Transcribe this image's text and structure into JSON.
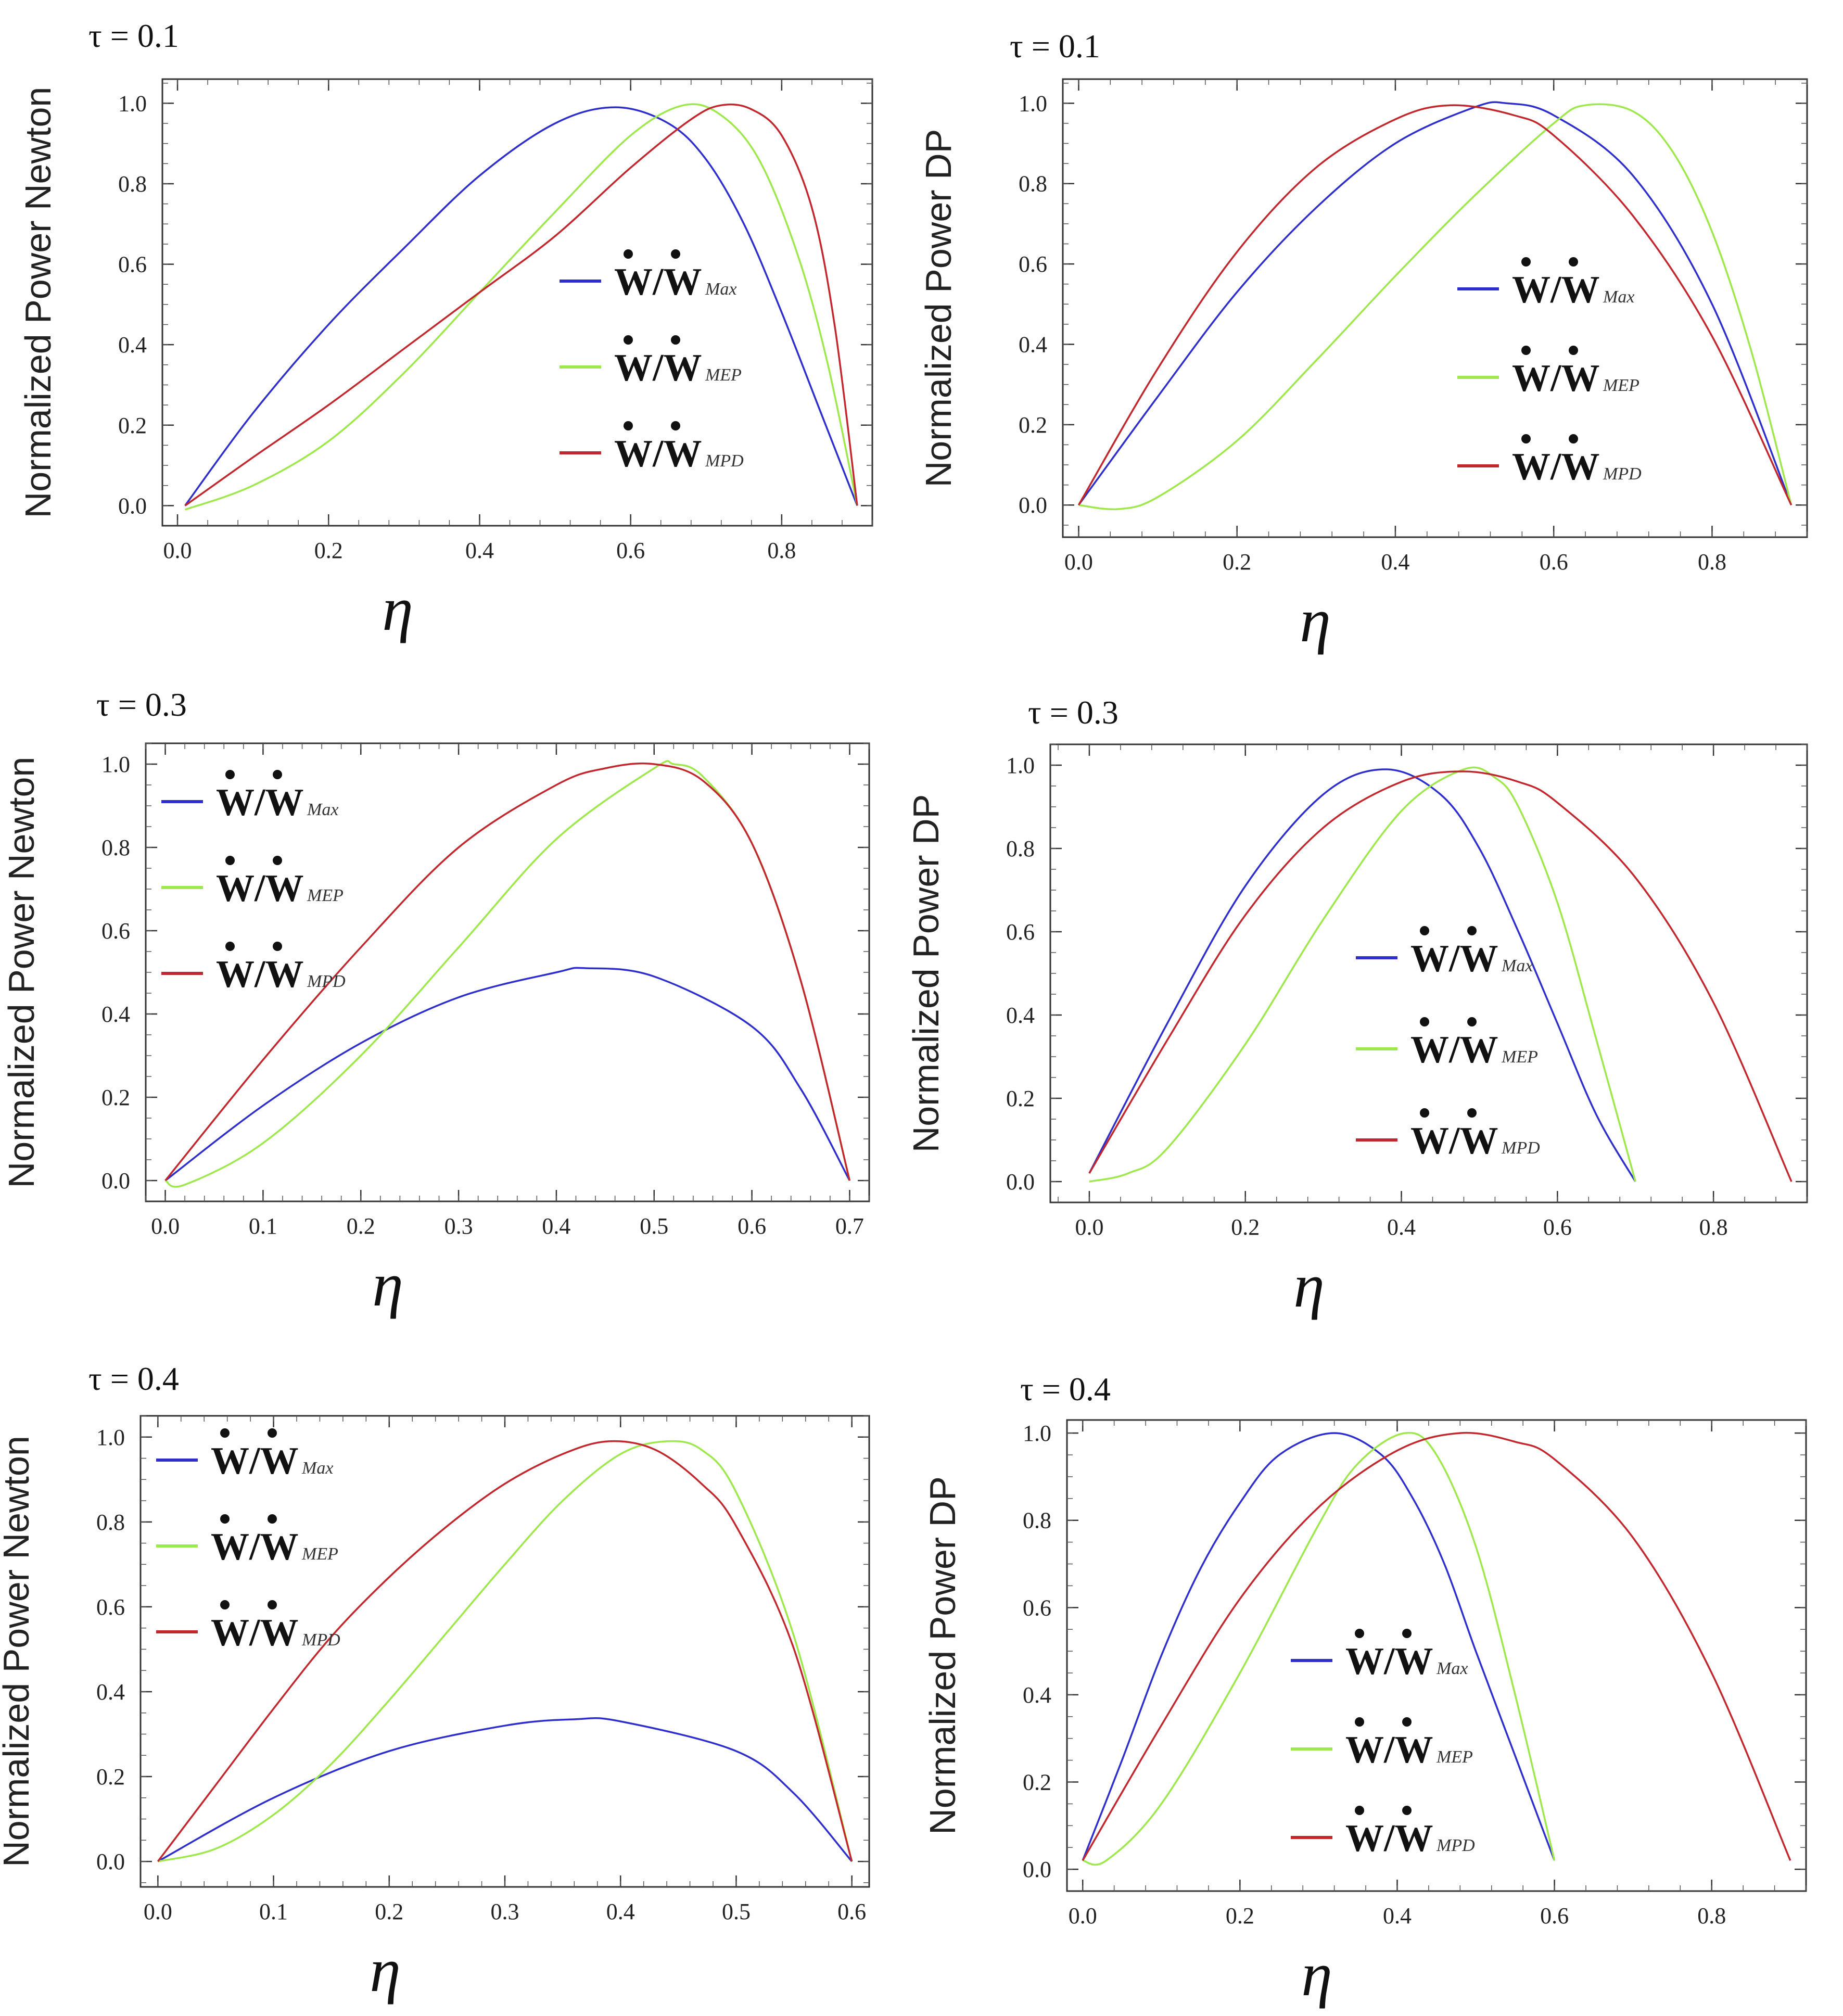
{
  "chart_data": [
    {
      "type": "line",
      "tau": "τ = 0.1",
      "ylabel": "Normalized Power Newton",
      "xlabel": "η",
      "xlim": [
        -0.02,
        0.92
      ],
      "ylim": [
        -0.05,
        1.06
      ],
      "xticks": [
        "0.0",
        "0.2",
        "0.4",
        "0.6",
        "0.8"
      ],
      "yticks": [
        "0.0",
        "0.2",
        "0.4",
        "0.6",
        "0.8",
        "1.0"
      ],
      "legend": {
        "position": "center-right",
        "entry_text": "W/W",
        "subscripts": [
          "Max",
          "MEP",
          "MPD"
        ]
      },
      "series": [
        {
          "name": "Max",
          "color": "#2e2ecc",
          "x": [
            0.01,
            0.1,
            0.2,
            0.3,
            0.4,
            0.5,
            0.58,
            0.65,
            0.7,
            0.75,
            0.8,
            0.85,
            0.9
          ],
          "y": [
            0.0,
            0.23,
            0.45,
            0.64,
            0.82,
            0.95,
            0.99,
            0.95,
            0.86,
            0.7,
            0.48,
            0.24,
            0.0
          ]
        },
        {
          "name": "MEP",
          "color": "#9de84a",
          "x": [
            0.01,
            0.1,
            0.2,
            0.3,
            0.4,
            0.5,
            0.6,
            0.67,
            0.72,
            0.77,
            0.82,
            0.86,
            0.9
          ],
          "y": [
            -0.01,
            0.05,
            0.16,
            0.33,
            0.53,
            0.73,
            0.92,
            0.995,
            0.97,
            0.86,
            0.63,
            0.36,
            0.0
          ]
        },
        {
          "name": "MPD",
          "color": "#c1272d",
          "x": [
            0.01,
            0.1,
            0.2,
            0.3,
            0.4,
            0.5,
            0.6,
            0.68,
            0.72,
            0.76,
            0.8,
            0.84,
            0.87,
            0.9
          ],
          "y": [
            0.0,
            0.12,
            0.25,
            0.39,
            0.53,
            0.67,
            0.84,
            0.96,
            0.995,
            0.985,
            0.92,
            0.74,
            0.45,
            0.0
          ]
        }
      ]
    },
    {
      "type": "line",
      "tau": "τ = 0.1",
      "ylabel": "Normalized Power DP",
      "xlabel": "η",
      "xlim": [
        -0.02,
        0.92
      ],
      "ylim": [
        -0.08,
        1.06
      ],
      "xticks": [
        "0.0",
        "0.2",
        "0.4",
        "0.6",
        "0.8"
      ],
      "yticks": [
        "0.0",
        "0.2",
        "0.4",
        "0.6",
        "0.8",
        "1.0"
      ],
      "legend": {
        "position": "center-right",
        "entry_text": "W/W",
        "subscripts": [
          "Max",
          "MEP",
          "MPD"
        ]
      },
      "series": [
        {
          "name": "Max",
          "color": "#2e2ecc",
          "x": [
            0.0,
            0.1,
            0.2,
            0.3,
            0.4,
            0.5,
            0.54,
            0.6,
            0.7,
            0.8,
            0.9
          ],
          "y": [
            0.0,
            0.27,
            0.53,
            0.74,
            0.9,
            0.99,
            1.0,
            0.97,
            0.82,
            0.5,
            0.0
          ]
        },
        {
          "name": "MEP",
          "color": "#9de84a",
          "x": [
            0.0,
            0.05,
            0.1,
            0.2,
            0.3,
            0.4,
            0.5,
            0.6,
            0.64,
            0.7,
            0.75,
            0.8,
            0.85,
            0.9
          ],
          "y": [
            0.0,
            -0.01,
            0.02,
            0.16,
            0.36,
            0.57,
            0.77,
            0.95,
            0.995,
            0.98,
            0.88,
            0.68,
            0.38,
            0.0
          ]
        },
        {
          "name": "MPD",
          "color": "#c1272d",
          "x": [
            0.0,
            0.1,
            0.2,
            0.3,
            0.4,
            0.47,
            0.55,
            0.6,
            0.7,
            0.8,
            0.9
          ],
          "y": [
            0.0,
            0.34,
            0.63,
            0.84,
            0.96,
            0.995,
            0.97,
            0.92,
            0.72,
            0.42,
            0.0
          ]
        }
      ]
    },
    {
      "type": "line",
      "tau": "τ = 0.3",
      "ylabel": "Normalized Power Newton",
      "xlabel": "η",
      "xlim": [
        -0.02,
        0.72
      ],
      "ylim": [
        -0.05,
        1.05
      ],
      "xticks": [
        "0.0",
        "0.1",
        "0.2",
        "0.3",
        "0.4",
        "0.5",
        "0.6",
        "0.7"
      ],
      "yticks": [
        "0.0",
        "0.2",
        "0.4",
        "0.6",
        "0.8",
        "1.0"
      ],
      "legend": {
        "position": "top-left",
        "entry_text": "W/W",
        "subscripts": [
          "Max",
          "MEP",
          "MPD"
        ]
      },
      "series": [
        {
          "name": "Max",
          "color": "#2e2ecc",
          "x": [
            0.0,
            0.1,
            0.2,
            0.3,
            0.4,
            0.43,
            0.5,
            0.6,
            0.65,
            0.7
          ],
          "y": [
            0.0,
            0.18,
            0.33,
            0.44,
            0.5,
            0.51,
            0.49,
            0.37,
            0.22,
            0.0
          ]
        },
        {
          "name": "MEP",
          "color": "#9de84a",
          "x": [
            0.0,
            0.02,
            0.1,
            0.2,
            0.3,
            0.4,
            0.5,
            0.52,
            0.55,
            0.6,
            0.65,
            0.7
          ],
          "y": [
            0.0,
            -0.01,
            0.09,
            0.3,
            0.56,
            0.82,
            0.99,
            1.0,
            0.97,
            0.81,
            0.48,
            0.0
          ]
        },
        {
          "name": "MPD",
          "color": "#c1272d",
          "x": [
            0.0,
            0.1,
            0.2,
            0.3,
            0.4,
            0.45,
            0.5,
            0.55,
            0.6,
            0.65,
            0.7
          ],
          "y": [
            0.0,
            0.29,
            0.56,
            0.8,
            0.95,
            0.99,
            1.0,
            0.96,
            0.81,
            0.48,
            0.0
          ]
        }
      ]
    },
    {
      "type": "line",
      "tau": "τ = 0.3",
      "ylabel": "Normalized Power DP",
      "xlabel": "η",
      "xlim": [
        -0.05,
        0.92
      ],
      "ylim": [
        -0.05,
        1.05
      ],
      "xticks": [
        "0.0",
        "0.2",
        "0.4",
        "0.6",
        "0.8"
      ],
      "yticks": [
        "0.0",
        "0.2",
        "0.4",
        "0.6",
        "0.8",
        "1.0"
      ],
      "legend": {
        "position": "center",
        "entry_text": "W/W",
        "subscripts": [
          "Max",
          "MEP",
          "MPD"
        ]
      },
      "series": [
        {
          "name": "Max",
          "color": "#2e2ecc",
          "x": [
            0.0,
            0.1,
            0.2,
            0.3,
            0.38,
            0.45,
            0.5,
            0.55,
            0.6,
            0.65,
            0.7
          ],
          "y": [
            0.02,
            0.38,
            0.71,
            0.93,
            0.99,
            0.93,
            0.8,
            0.6,
            0.38,
            0.16,
            0.0
          ]
        },
        {
          "name": "MEP",
          "color": "#9de84a",
          "x": [
            0.0,
            0.05,
            0.1,
            0.2,
            0.3,
            0.4,
            0.48,
            0.52,
            0.55,
            0.6,
            0.65,
            0.7
          ],
          "y": [
            0.0,
            0.02,
            0.08,
            0.33,
            0.63,
            0.89,
            0.99,
            0.97,
            0.9,
            0.67,
            0.34,
            0.0
          ]
        },
        {
          "name": "MPD",
          "color": "#c1272d",
          "x": [
            0.0,
            0.1,
            0.2,
            0.3,
            0.4,
            0.48,
            0.55,
            0.6,
            0.7,
            0.8,
            0.9
          ],
          "y": [
            0.02,
            0.34,
            0.64,
            0.85,
            0.96,
            0.985,
            0.96,
            0.91,
            0.73,
            0.43,
            0.0
          ]
        }
      ]
    },
    {
      "type": "line",
      "tau": "τ = 0.4",
      "ylabel": "Normalized Power Newton",
      "xlabel": "η",
      "xlim": [
        -0.015,
        0.615
      ],
      "ylim": [
        -0.06,
        1.05
      ],
      "xticks": [
        "0.0",
        "0.1",
        "0.2",
        "0.3",
        "0.4",
        "0.5",
        "0.6"
      ],
      "yticks": [
        "0.0",
        "0.2",
        "0.4",
        "0.6",
        "0.8",
        "1.0"
      ],
      "legend": {
        "position": "top-left",
        "entry_text": "W/W",
        "subscripts": [
          "Max",
          "MEP",
          "MPD"
        ]
      },
      "series": [
        {
          "name": "Max",
          "color": "#2e2ecc",
          "x": [
            0.0,
            0.1,
            0.2,
            0.3,
            0.36,
            0.4,
            0.5,
            0.55,
            0.6
          ],
          "y": [
            0.0,
            0.15,
            0.26,
            0.32,
            0.335,
            0.33,
            0.26,
            0.16,
            0.0
          ]
        },
        {
          "name": "MEP",
          "color": "#9de84a",
          "x": [
            0.0,
            0.05,
            0.1,
            0.15,
            0.2,
            0.25,
            0.3,
            0.35,
            0.4,
            0.44,
            0.47,
            0.5,
            0.55,
            0.6
          ],
          "y": [
            0.0,
            0.03,
            0.11,
            0.23,
            0.38,
            0.54,
            0.7,
            0.85,
            0.96,
            0.99,
            0.97,
            0.87,
            0.53,
            0.0
          ]
        },
        {
          "name": "MPD",
          "color": "#c1272d",
          "x": [
            0.0,
            0.05,
            0.1,
            0.15,
            0.2,
            0.25,
            0.3,
            0.35,
            0.39,
            0.43,
            0.47,
            0.5,
            0.55,
            0.6
          ],
          "y": [
            0.0,
            0.18,
            0.36,
            0.53,
            0.67,
            0.79,
            0.89,
            0.96,
            0.99,
            0.97,
            0.89,
            0.79,
            0.5,
            0.0
          ]
        }
      ]
    },
    {
      "type": "line",
      "tau": "τ = 0.4",
      "ylabel": "Normalized Power DP",
      "xlabel": "η",
      "xlim": [
        -0.02,
        0.92
      ],
      "ylim": [
        -0.05,
        1.03
      ],
      "xticks": [
        "0.0",
        "0.2",
        "0.4",
        "0.6",
        "0.8"
      ],
      "yticks": [
        "0.0",
        "0.2",
        "0.4",
        "0.6",
        "0.8",
        "1.0"
      ],
      "legend": {
        "position": "center",
        "entry_text": "W/W",
        "subscripts": [
          "Max",
          "MEP",
          "MPD"
        ]
      },
      "series": [
        {
          "name": "Max",
          "color": "#2e2ecc",
          "x": [
            0.0,
            0.05,
            0.1,
            0.15,
            0.2,
            0.25,
            0.32,
            0.38,
            0.42,
            0.46,
            0.5,
            0.55,
            0.6
          ],
          "y": [
            0.02,
            0.25,
            0.49,
            0.69,
            0.84,
            0.95,
            1.0,
            0.95,
            0.85,
            0.7,
            0.5,
            0.26,
            0.02
          ]
        },
        {
          "name": "MEP",
          "color": "#9de84a",
          "x": [
            0.0,
            0.03,
            0.1,
            0.2,
            0.3,
            0.35,
            0.41,
            0.45,
            0.5,
            0.55,
            0.6
          ],
          "y": [
            0.02,
            0.02,
            0.15,
            0.45,
            0.79,
            0.93,
            1.0,
            0.95,
            0.74,
            0.4,
            0.02
          ]
        },
        {
          "name": "MPD",
          "color": "#c1272d",
          "x": [
            0.0,
            0.1,
            0.2,
            0.3,
            0.4,
            0.48,
            0.55,
            0.6,
            0.7,
            0.8,
            0.9
          ],
          "y": [
            0.02,
            0.33,
            0.62,
            0.83,
            0.96,
            1.0,
            0.98,
            0.94,
            0.76,
            0.45,
            0.02
          ]
        }
      ]
    }
  ]
}
